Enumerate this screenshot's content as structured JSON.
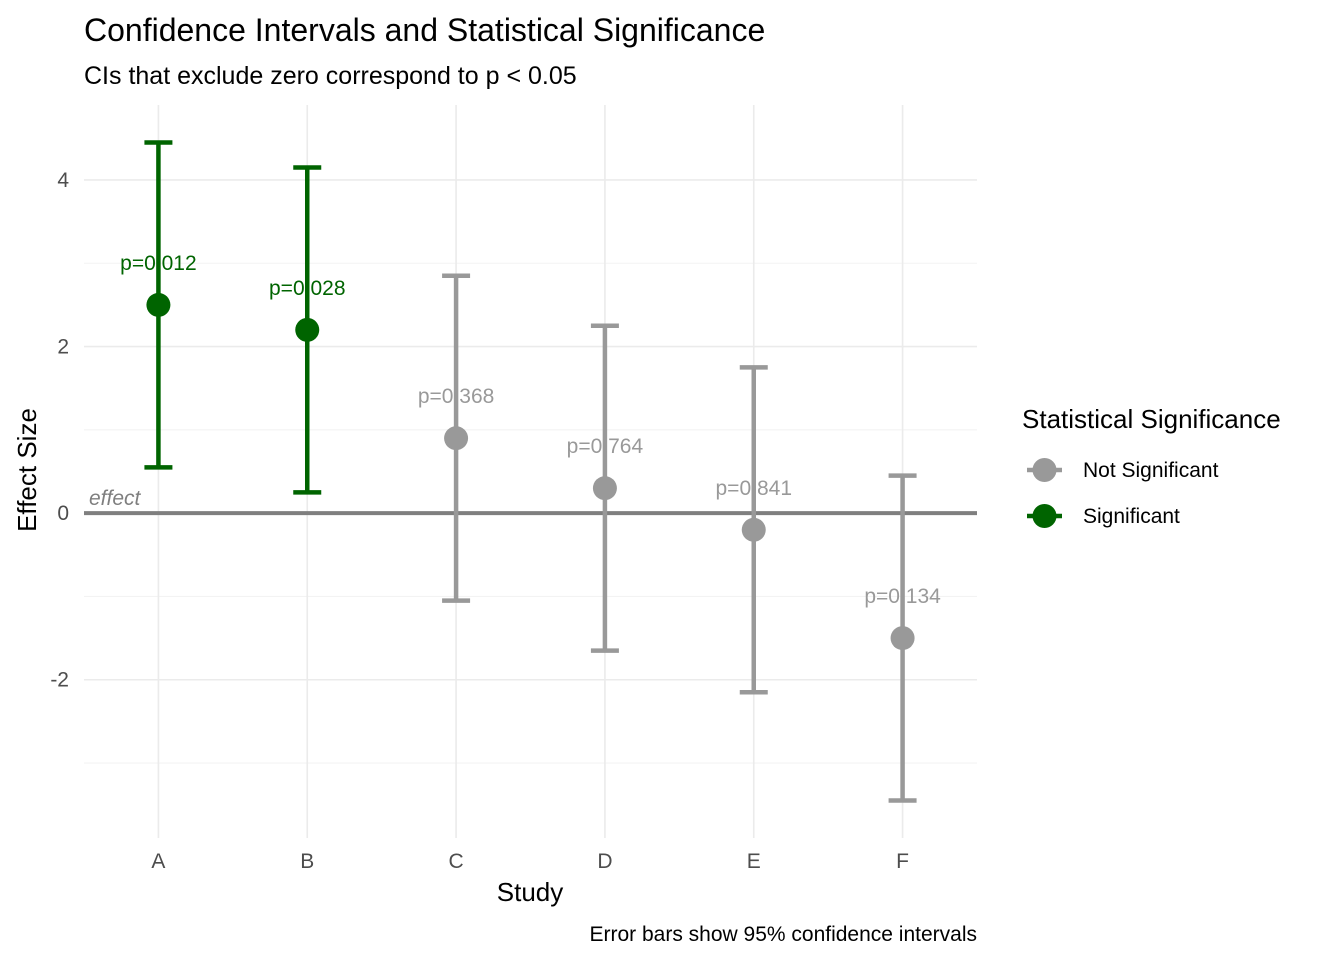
{
  "chart_data": {
    "type": "errorbar",
    "title": "Confidence Intervals and Statistical Significance",
    "subtitle": "CIs that exclude zero correspond to p < 0.05",
    "xlabel": "Study",
    "ylabel": "Effect Size",
    "caption": "Error bars show 95% confidence intervals",
    "categories": [
      "A",
      "B",
      "C",
      "D",
      "E",
      "F"
    ],
    "estimates": [
      2.5,
      2.2,
      0.9,
      0.3,
      -0.2,
      -1.5
    ],
    "ci_lower": [
      0.55,
      0.25,
      -1.05,
      -1.65,
      -2.15,
      -3.45
    ],
    "ci_upper": [
      4.45,
      4.15,
      2.85,
      2.25,
      1.75,
      0.45
    ],
    "p_labels": [
      "p=0.012",
      "p=0.028",
      "p=0.368",
      "p=0.764",
      "p=0.841",
      "p=0.134"
    ],
    "significance": [
      "Significant",
      "Significant",
      "Not Significant",
      "Not Significant",
      "Not Significant",
      "Not Significant"
    ],
    "reference_line": {
      "y": 0,
      "label": "effect",
      "color": "#7f7f7f"
    },
    "y_ticks": [
      -2,
      0,
      2,
      4
    ],
    "y_tick_labels": [
      "-2",
      "0",
      "2",
      "4"
    ],
    "ylim": [
      -3.9,
      4.9
    ],
    "grid": true,
    "legend": {
      "title": "Statistical Significance",
      "position": "right",
      "entries": [
        {
          "label": "Not Significant",
          "color": "#999999"
        },
        {
          "label": "Significant",
          "color": "#006400"
        }
      ]
    }
  }
}
